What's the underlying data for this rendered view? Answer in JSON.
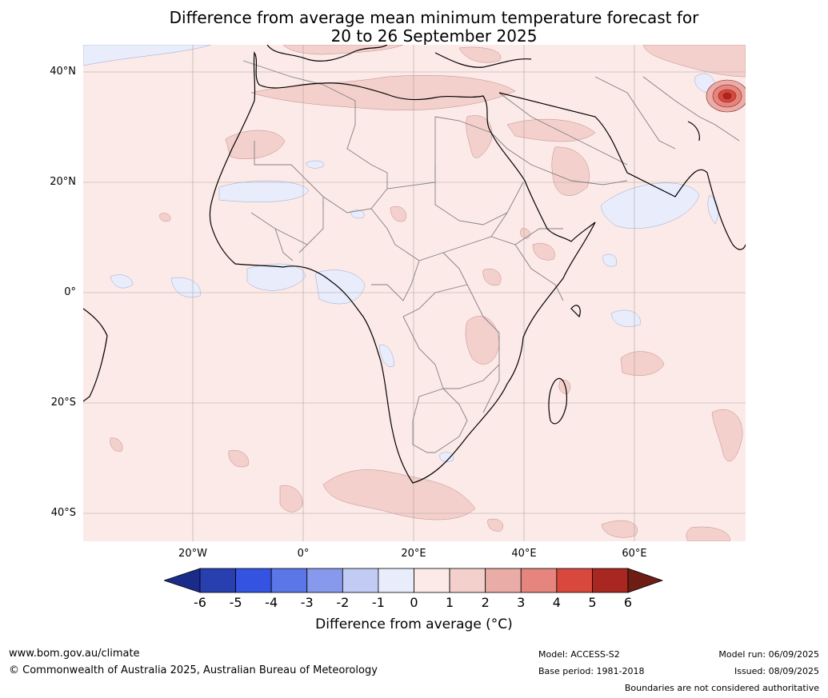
{
  "title": {
    "line1": "Difference from average mean minimum temperature forecast for",
    "line2": "20 to 26 September 2025"
  },
  "axes": {
    "lat_labels": [
      "40°N",
      "20°N",
      "0°",
      "20°S",
      "40°S"
    ],
    "lon_labels": [
      "20°W",
      "0°",
      "20°E",
      "40°E",
      "60°E"
    ]
  },
  "colorbar": {
    "label": "Difference from average ($^\\circ$C)",
    "label_display": "Difference from average (°C)",
    "ticks": [
      "-6",
      "-5",
      "-4",
      "-3",
      "-2",
      "-1",
      "0",
      "1",
      "2",
      "3",
      "4",
      "5",
      "6"
    ],
    "colors": [
      "#1b2b8a",
      "#283fb0",
      "#3453e0",
      "#5b76e6",
      "#8799ec",
      "#c2cbf4",
      "#e8ecfb",
      "#fbeae8",
      "#f3d0cc",
      "#eaaca6",
      "#e5857d",
      "#d9483d",
      "#a82720",
      "#6e1d14"
    ]
  },
  "map": {
    "background_anomaly_color": "#fbeae8",
    "cool_anomaly_color": "#e8ecfb",
    "warm_anomaly_color": "#f3d0cc",
    "hot_spot_color": "#d9483d",
    "land_outline_color": "#000000",
    "border_color": "#808080"
  },
  "footer": {
    "website": "www.bom.gov.au/climate",
    "copyright": "© Commonwealth of Australia 2025, Australian Bureau of Meteorology",
    "model": "Model: ACCESS-S2",
    "base_period": "Base period: 1981-2018",
    "model_run": "Model run: 06/09/2025",
    "issued": "Issued: 08/09/2025",
    "disclaimer": "Boundaries are not considered authoritative"
  }
}
